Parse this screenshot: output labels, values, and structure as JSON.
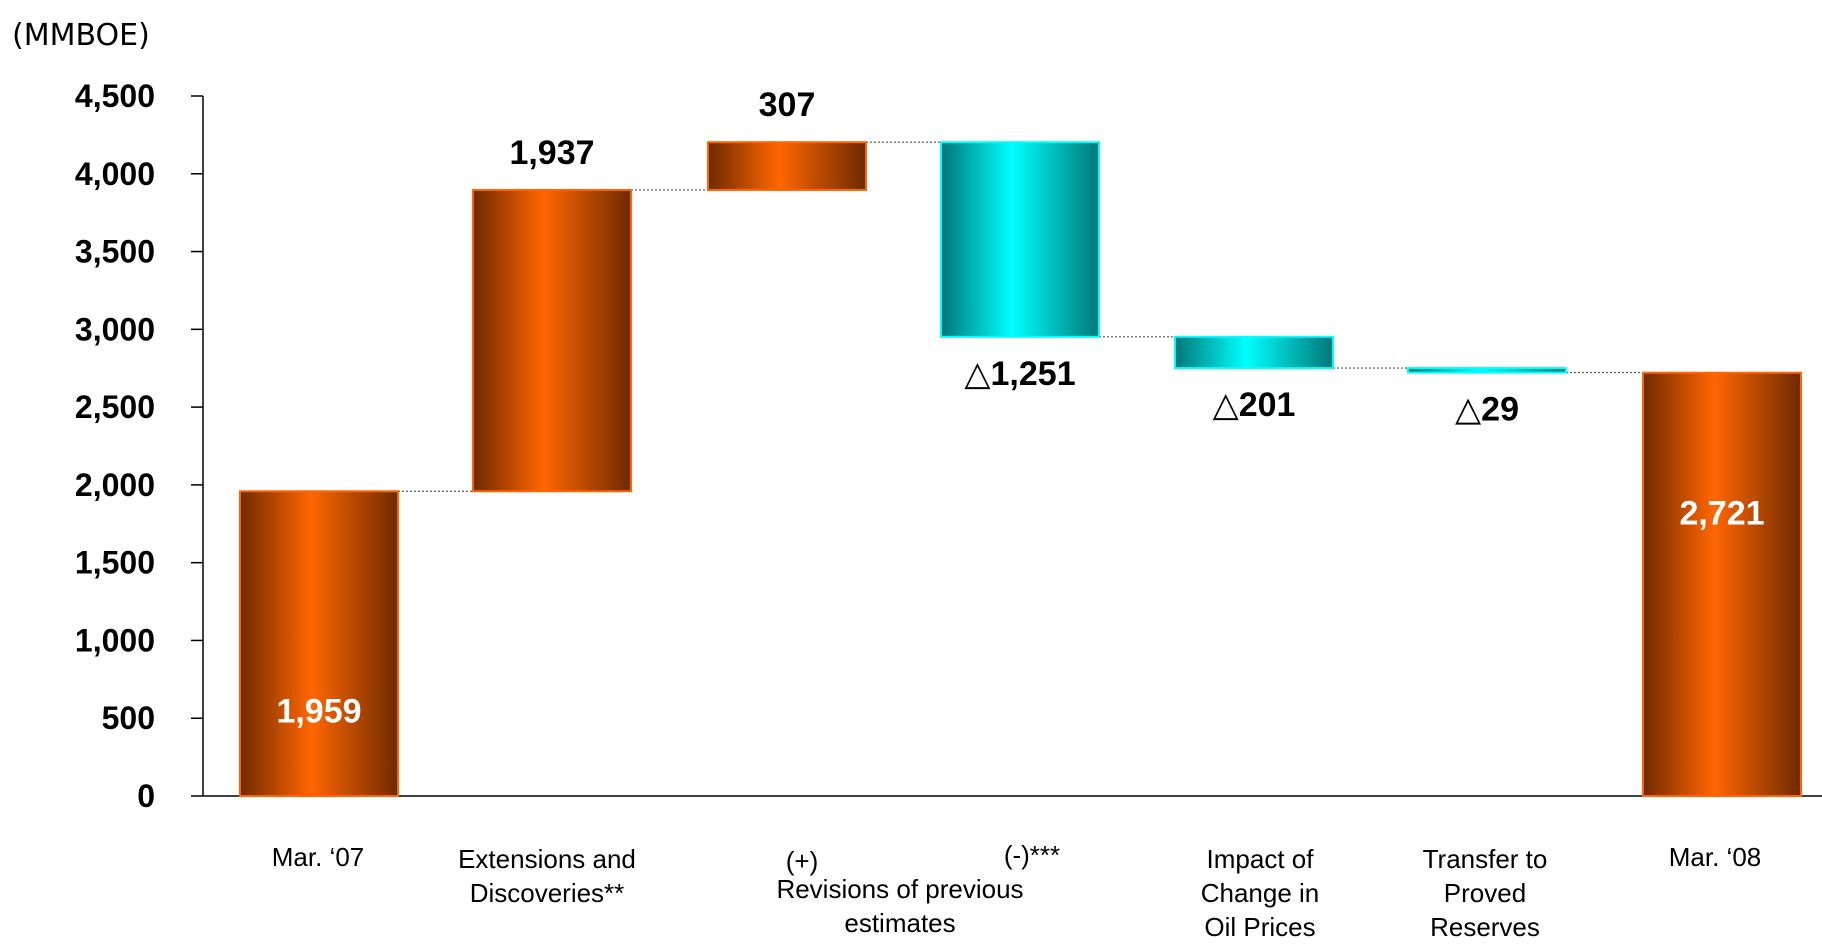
{
  "unit_label": "(MMBOE)",
  "colors": {
    "increase": "#ff6600",
    "increase_dark": "#6e2a00",
    "decrease": "#00ffff",
    "decrease_dark": "#007777",
    "connector": "#555555",
    "axis": "#000000"
  },
  "chart_data": {
    "type": "bar",
    "subtype": "waterfall",
    "ylabel": "(MMBOE)",
    "ylim": [
      0,
      4500
    ],
    "yticks": [
      0,
      500,
      1000,
      1500,
      2000,
      2500,
      3000,
      3500,
      4000,
      4500
    ],
    "ytick_labels": [
      "0",
      "500",
      "1,000",
      "1,500",
      "2,000",
      "2,500",
      "3,000",
      "3,500",
      "4,000",
      "4,500"
    ],
    "grid": false,
    "legend": "none",
    "bars": [
      {
        "kind": "total",
        "start": 0,
        "end": 1959,
        "label": "1,959"
      },
      {
        "kind": "increase",
        "start": 1959,
        "end": 3896,
        "label": "1,937"
      },
      {
        "kind": "increase",
        "start": 3896,
        "end": 4203,
        "label": "307"
      },
      {
        "kind": "decrease",
        "start": 4203,
        "end": 2952,
        "label": "△1,251"
      },
      {
        "kind": "decrease",
        "start": 2952,
        "end": 2751,
        "label": "△201"
      },
      {
        "kind": "decrease",
        "start": 2751,
        "end": 2722,
        "label": "△29"
      },
      {
        "kind": "total",
        "start": 0,
        "end": 2721,
        "label": "2,721"
      }
    ],
    "category_labels": [
      "Mar. ‘07",
      "Extensions and\nDiscoveries**",
      "(+)",
      "(-)***",
      "Impact of\nChange in\nOil Prices",
      "Transfer to\nProved\nReserves",
      "Mar. ‘08"
    ],
    "group_label": "Revisions of previous\nestimates"
  }
}
